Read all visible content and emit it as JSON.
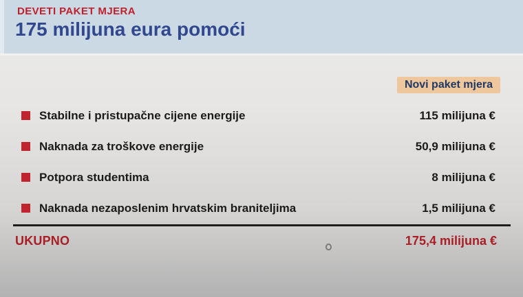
{
  "header": {
    "kicker": "DEVETI PAKET MJERA",
    "title": "175 milijuna eura pomoći"
  },
  "table": {
    "column_badge": "Novi paket mjera",
    "rows": [
      {
        "label": "Stabilne i pristupačne cijene energije",
        "value": "115 milijuna €"
      },
      {
        "label": "Naknada za troškove energije",
        "value": "50,9 milijuna €"
      },
      {
        "label": "Potpora studentima",
        "value": "8 milijuna €"
      },
      {
        "label": "Naknada nezaposlenim hrvatskim braniteljima",
        "value": "1,5 milijuna €"
      }
    ],
    "total": {
      "label": "UKUPNO",
      "value": "175,4 milijuna €"
    }
  },
  "icons": {
    "bullet": "red-square-bullet-icon",
    "cursor": "hand-cursor-icon"
  },
  "colors": {
    "header_background": "#cbd9e4",
    "kicker_red": "#c01f2c",
    "title_blue": "#31478e",
    "badge_background": "#eec79c",
    "badge_text": "#203864",
    "bullet_red": "#c0252f",
    "row_text": "#1a1a1a",
    "total_red": "#a81e24",
    "separator": "#1c1c1c",
    "body_gradient_top": "#ebeae8",
    "body_gradient_bottom": "#b3b2b2"
  }
}
